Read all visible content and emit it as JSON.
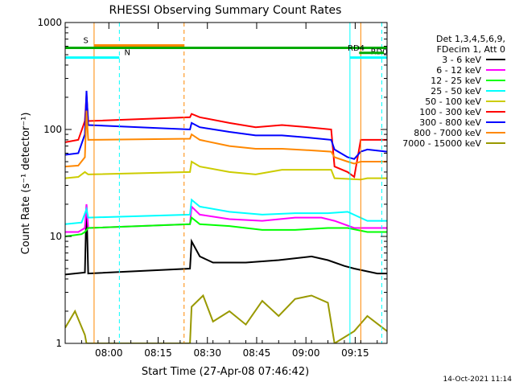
{
  "chart_data": {
    "type": "line",
    "title": "RHESSI Observing Summary Count Rates",
    "xlabel": "Start Time (27-Apr-08 07:46:42)",
    "ylabel": "Count Rate (s⁻¹ detector⁻¹)",
    "yscale": "log",
    "ylim": [
      1,
      1000
    ],
    "xlim_min": [
      0,
      98
    ],
    "x_units": "minutes after 07:46:42",
    "x_ticks": [
      {
        "label": "08:00",
        "x": 13.3
      },
      {
        "label": "08:15",
        "x": 28.3
      },
      {
        "label": "08:30",
        "x": 43.3
      },
      {
        "label": "08:45",
        "x": 58.3
      },
      {
        "label": "09:00",
        "x": 73.3
      },
      {
        "label": "09:15",
        "x": 88.3
      }
    ],
    "y_ticks": [
      {
        "label": "1",
        "y": 1
      },
      {
        "label": "10",
        "y": 10
      },
      {
        "label": "100",
        "y": 100
      },
      {
        "label": "1000",
        "y": 1000
      }
    ],
    "legend": {
      "header": [
        "Det 1,3,4,5,6,9,",
        "FDecim 1, Att 0"
      ],
      "placement": "right"
    },
    "series": [
      {
        "name": "3 - 6 keV",
        "color": "#000000",
        "points": [
          [
            0,
            4.4
          ],
          [
            6,
            4.6
          ],
          [
            6.5,
            20
          ],
          [
            7,
            4.5
          ],
          [
            38,
            5
          ],
          [
            38.5,
            9
          ],
          [
            41,
            6.5
          ],
          [
            45,
            5.7
          ],
          [
            55,
            5.7
          ],
          [
            65,
            6
          ],
          [
            75,
            6.5
          ],
          [
            80,
            6
          ],
          [
            85,
            5.3
          ],
          [
            88,
            5
          ],
          [
            95,
            4.5
          ],
          [
            98,
            4.5
          ]
        ]
      },
      {
        "name": "6 - 12 keV",
        "color": "#ff00ff",
        "points": [
          [
            0,
            11
          ],
          [
            4,
            11
          ],
          [
            6,
            12
          ],
          [
            6.5,
            20
          ],
          [
            7,
            12
          ],
          [
            38,
            13
          ],
          [
            38.5,
            19
          ],
          [
            41,
            16
          ],
          [
            50,
            14.5
          ],
          [
            60,
            14
          ],
          [
            70,
            15
          ],
          [
            78,
            15
          ],
          [
            82,
            14
          ],
          [
            88,
            12
          ],
          [
            95,
            12
          ],
          [
            98,
            12
          ]
        ]
      },
      {
        "name": "12 - 25 keV",
        "color": "#00ff00",
        "points": [
          [
            0,
            10
          ],
          [
            5,
            10.5
          ],
          [
            6,
            11
          ],
          [
            7,
            12
          ],
          [
            38,
            13
          ],
          [
            38.5,
            15
          ],
          [
            41,
            13
          ],
          [
            50,
            12.5
          ],
          [
            60,
            11.5
          ],
          [
            70,
            11.5
          ],
          [
            80,
            12
          ],
          [
            86,
            12
          ],
          [
            92,
            11
          ],
          [
            98,
            11
          ]
        ]
      },
      {
        "name": "25 - 50 keV",
        "color": "#00ffff",
        "points": [
          [
            0,
            13
          ],
          [
            5,
            13.5
          ],
          [
            6.5,
            18
          ],
          [
            7,
            15
          ],
          [
            38,
            16
          ],
          [
            38.5,
            22
          ],
          [
            41,
            19
          ],
          [
            50,
            17
          ],
          [
            60,
            16
          ],
          [
            70,
            16.5
          ],
          [
            80,
            16.5
          ],
          [
            86,
            17
          ],
          [
            92,
            14
          ],
          [
            98,
            14
          ]
        ]
      },
      {
        "name": "50 - 100 keV",
        "color": "#cccc00",
        "points": [
          [
            0,
            35
          ],
          [
            4,
            36
          ],
          [
            6,
            40
          ],
          [
            7,
            38
          ],
          [
            38,
            40
          ],
          [
            38.5,
            50
          ],
          [
            41,
            45
          ],
          [
            50,
            40
          ],
          [
            58,
            38
          ],
          [
            66,
            42
          ],
          [
            74,
            42
          ],
          [
            81,
            42
          ],
          [
            82,
            35
          ],
          [
            90,
            34
          ],
          [
            92,
            35
          ],
          [
            98,
            35
          ]
        ]
      },
      {
        "name": "100 - 300 keV",
        "color": "#ff0000",
        "points": [
          [
            0,
            76
          ],
          [
            4,
            80
          ],
          [
            6,
            120
          ],
          [
            6.5,
            210
          ],
          [
            7,
            120
          ],
          [
            38,
            130
          ],
          [
            38.5,
            140
          ],
          [
            41,
            130
          ],
          [
            50,
            115
          ],
          [
            58,
            105
          ],
          [
            66,
            110
          ],
          [
            74,
            105
          ],
          [
            81,
            100
          ],
          [
            82,
            45
          ],
          [
            86,
            40
          ],
          [
            88,
            36
          ],
          [
            90,
            80
          ],
          [
            92,
            80
          ],
          [
            98,
            80
          ]
        ]
      },
      {
        "name": "300 - 800 keV",
        "color": "#0000ff",
        "points": [
          [
            0,
            58
          ],
          [
            4,
            60
          ],
          [
            6,
            90
          ],
          [
            6.5,
            230
          ],
          [
            7,
            110
          ],
          [
            38,
            100
          ],
          [
            38.5,
            115
          ],
          [
            41,
            105
          ],
          [
            50,
            95
          ],
          [
            58,
            88
          ],
          [
            66,
            88
          ],
          [
            74,
            84
          ],
          [
            81,
            80
          ],
          [
            82,
            65
          ],
          [
            86,
            55
          ],
          [
            88,
            53
          ],
          [
            90,
            62
          ],
          [
            92,
            65
          ],
          [
            98,
            62
          ]
        ]
      },
      {
        "name": "800 - 7000 keV",
        "color": "#ff8800",
        "points": [
          [
            0,
            45
          ],
          [
            4,
            46
          ],
          [
            6,
            55
          ],
          [
            6.5,
            150
          ],
          [
            7,
            80
          ],
          [
            38,
            82
          ],
          [
            38.5,
            90
          ],
          [
            41,
            80
          ],
          [
            50,
            70
          ],
          [
            58,
            66
          ],
          [
            66,
            66
          ],
          [
            74,
            64
          ],
          [
            81,
            62
          ],
          [
            82,
            55
          ],
          [
            86,
            50
          ],
          [
            88,
            48
          ],
          [
            90,
            50
          ],
          [
            92,
            50
          ],
          [
            98,
            50
          ]
        ]
      },
      {
        "name": "7000 - 15000 keV",
        "color": "#999900",
        "points": [
          [
            0,
            1.4
          ],
          [
            3,
            2
          ],
          [
            6,
            1.2
          ],
          [
            6.5,
            1
          ],
          [
            38,
            1
          ],
          [
            38.5,
            2.2
          ],
          [
            42,
            2.8
          ],
          [
            45,
            1.6
          ],
          [
            50,
            2
          ],
          [
            55,
            1.5
          ],
          [
            60,
            2.5
          ],
          [
            65,
            1.8
          ],
          [
            70,
            2.6
          ],
          [
            75,
            2.8
          ],
          [
            80,
            2.4
          ],
          [
            82,
            1
          ],
          [
            88,
            1.3
          ],
          [
            92,
            1.8
          ],
          [
            98,
            1.3
          ]
        ]
      }
    ],
    "vertical_markers": [
      {
        "x": 0,
        "color": "#00ffff",
        "style": "solid"
      },
      {
        "x": 8.8,
        "color": "#ff8800",
        "style": "solid"
      },
      {
        "x": 16.5,
        "color": "#00ffff",
        "style": "dashed"
      },
      {
        "x": 36.2,
        "color": "#ff8800",
        "style": "dashed"
      },
      {
        "x": 86.7,
        "color": "#00ffff",
        "style": "solid"
      },
      {
        "x": 90,
        "color": "#ff8800",
        "style": "solid"
      },
      {
        "x": 96.4,
        "color": "#00ffff",
        "style": "dashed"
      }
    ],
    "top_bars": [
      {
        "label": "S",
        "color": "#ff8800",
        "x0": 8.8,
        "x1": 36.2,
        "y": 610,
        "label_x": 5.5
      },
      {
        "label": "N",
        "color": "#00ffff",
        "x0": 0,
        "x1": 16.5,
        "y": 470,
        "label_x": 18
      },
      {
        "label": "",
        "color": "#00ffff",
        "x0": 86.7,
        "x1": 98,
        "y": 470,
        "label_x": 0
      },
      {
        "label": "",
        "color": "#00aa00",
        "x0": 0,
        "x1": 98,
        "y": 580,
        "label_x": 0
      },
      {
        "label": "RD0",
        "color": "#00aa00",
        "x0": 0,
        "x1": 0,
        "y": 480,
        "label_x": 93
      },
      {
        "label": "RD4",
        "color": "#00aa00",
        "x0": 89.5,
        "x1": 97,
        "y": 520,
        "label_x": 86
      }
    ],
    "annotations": {
      "timestamp": "14-Oct-2021 11:14"
    }
  }
}
